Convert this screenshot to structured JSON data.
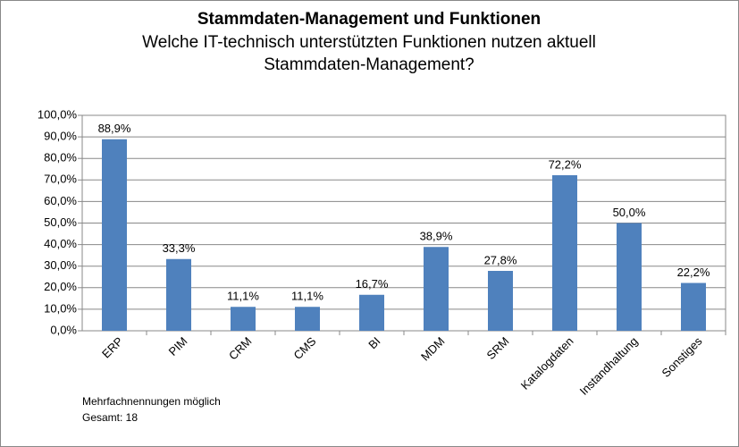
{
  "chart_data": {
    "type": "bar",
    "title": "Stammdaten-Management und Funktionen",
    "subtitle": [
      "Welche IT-technisch unterstützten Funktionen nutzen aktuell",
      "Stammdaten-Management?"
    ],
    "categories": [
      "ERP",
      "PIM",
      "CRM",
      "CMS",
      "BI",
      "MDM",
      "SRM",
      "Katalogdaten",
      "Instandhaltung",
      "Sonstiges"
    ],
    "values": [
      88.9,
      33.3,
      11.1,
      11.1,
      16.7,
      38.9,
      27.8,
      72.2,
      50.0,
      22.2
    ],
    "value_labels": [
      "88,9%",
      "33,3%",
      "11,1%",
      "11,1%",
      "16,7%",
      "38,9%",
      "27,8%",
      "72,2%",
      "50,0%",
      "22,2%"
    ],
    "color": "#4f81bd",
    "ylim": [
      0,
      100
    ],
    "yticks": [
      {
        "value": 0,
        "label": "0,0%"
      },
      {
        "value": 10,
        "label": "10,0%"
      },
      {
        "value": 20,
        "label": "20,0%"
      },
      {
        "value": 30,
        "label": "30,0%"
      },
      {
        "value": 40,
        "label": "40,0%"
      },
      {
        "value": 50,
        "label": "50,0%"
      },
      {
        "value": 60,
        "label": "60,0%"
      },
      {
        "value": 70,
        "label": "70,0%"
      },
      {
        "value": 80,
        "label": "80,0%"
      },
      {
        "value": 90,
        "label": "90,0%"
      },
      {
        "value": 100,
        "label": "100,0%"
      }
    ],
    "grid": true,
    "annotations": [
      "Mehrfachnennungen möglich",
      "Gesamt: 18"
    ]
  }
}
